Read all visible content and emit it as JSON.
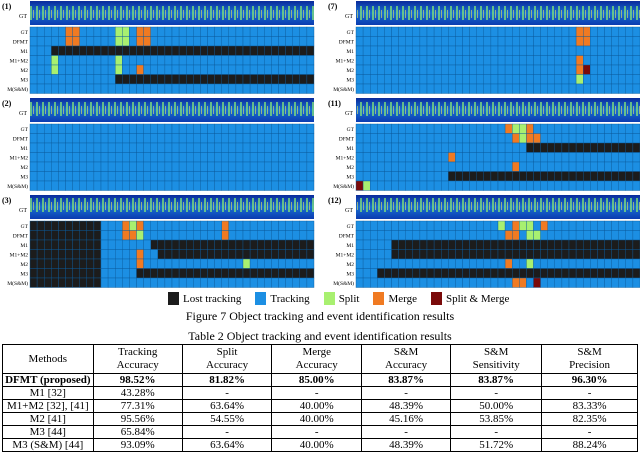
{
  "figure": {
    "panels": [
      {
        "label": "(1)"
      },
      {
        "label": "(7)"
      },
      {
        "label": "(2)"
      },
      {
        "label": "(11)"
      },
      {
        "label": "(3)"
      },
      {
        "label": "(12)"
      }
    ],
    "strip_label": "GT",
    "row_labels": [
      "GT",
      "DFMT",
      "M1",
      "M1+M2",
      "M2",
      "M3",
      "M(S&M)"
    ],
    "legend": [
      "Lost tracking",
      "Tracking",
      "Split",
      "Merge",
      "Split & Merge"
    ],
    "caption": "Figure 7 Object tracking and event identification results"
  },
  "table": {
    "caption": "Table 2 Object tracking and event identification results",
    "header": [
      "Methods",
      "Tracking Accuracy",
      "Split Accuracy",
      "Merge Accuracy",
      "S&M Accuracy",
      "S&M Sensitivity",
      "S&M Precision"
    ],
    "rows": [
      [
        "DFMT (proposed)",
        "98.52%",
        "81.82%",
        "85.00%",
        "83.87%",
        "83.87%",
        "96.30%"
      ],
      [
        "M1 [32]",
        "43.28%",
        "-",
        "-",
        "-",
        "-",
        "-"
      ],
      [
        "M1+M2 [32], [41]",
        "77.31%",
        "63.64%",
        "40.00%",
        "48.39%",
        "50.00%",
        "83.33%"
      ],
      [
        "M2 [41]",
        "95.56%",
        "54.55%",
        "40.00%",
        "45.16%",
        "53.85%",
        "82.35%"
      ],
      [
        "M3 [44]",
        "65.84%",
        "-",
        "-",
        "-",
        "-",
        "-"
      ],
      [
        "M3 (S&M) [44]",
        "93.09%",
        "63.64%",
        "40.00%",
        "48.39%",
        "51.72%",
        "88.24%"
      ]
    ]
  }
}
